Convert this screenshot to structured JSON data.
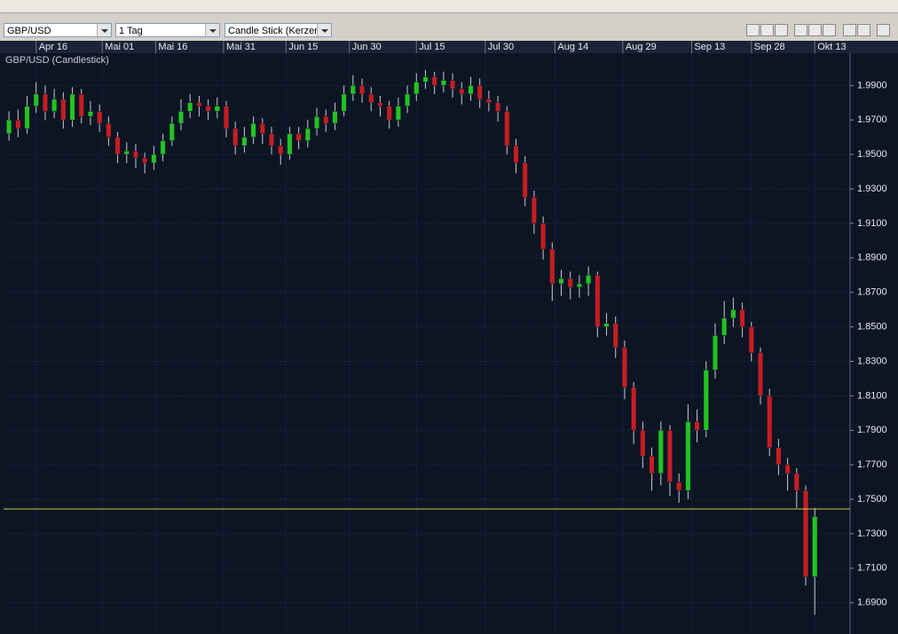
{
  "ui": {
    "symbol": "GBP/USD",
    "period": "1 Tag",
    "chart_style": "Candle Stick (Kerzen"
  },
  "chart_data": {
    "type": "candlestick",
    "title": "GBP/USD (Candlestick)",
    "xlim": [
      -0.6,
      92.9
    ],
    "xticks": [
      {
        "value": 3,
        "label": "Apr 16"
      },
      {
        "value": 10.3,
        "label": "Mai 01"
      },
      {
        "value": 16.2,
        "label": "Mai 16"
      },
      {
        "value": 23.7,
        "label": "Mai 31"
      },
      {
        "value": 30.6,
        "label": "Jun 15"
      },
      {
        "value": 37.6,
        "label": "Jun 30"
      },
      {
        "value": 45,
        "label": "Jul 15"
      },
      {
        "value": 52.6,
        "label": "Jul 30"
      },
      {
        "value": 60.3,
        "label": "Aug 14"
      },
      {
        "value": 67.8,
        "label": "Aug 29"
      },
      {
        "value": 75.4,
        "label": "Sep 13"
      },
      {
        "value": 82,
        "label": "Sep 28"
      },
      {
        "value": 89,
        "label": "Okt 13"
      }
    ],
    "ylim": [
      1.6734,
      2.0087
    ],
    "yticks": [
      {
        "value": 1.69,
        "label": "1.6900"
      },
      {
        "value": 1.71,
        "label": "1.7100"
      },
      {
        "value": 1.73,
        "label": "1.7300"
      },
      {
        "value": 1.75,
        "label": "1.7500"
      },
      {
        "value": 1.77,
        "label": "1.7700"
      },
      {
        "value": 1.79,
        "label": "1.7900"
      },
      {
        "value": 1.81,
        "label": "1.8100"
      },
      {
        "value": 1.83,
        "label": "1.8300"
      },
      {
        "value": 1.85,
        "label": "1.8500"
      },
      {
        "value": 1.87,
        "label": "1.8700"
      },
      {
        "value": 1.89,
        "label": "1.8900"
      },
      {
        "value": 1.91,
        "label": "1.9100"
      },
      {
        "value": 1.93,
        "label": "1.9300"
      },
      {
        "value": 1.95,
        "label": "1.9500"
      },
      {
        "value": 1.97,
        "label": "1.9700"
      },
      {
        "value": 1.99,
        "label": "1.9900"
      }
    ],
    "grid": true,
    "up_color": "#22c322",
    "down_color": "#c41e24",
    "wick_color": "#c8ccd4",
    "price_line": 1.7444,
    "price_line_color": "#d9c84a",
    "open": [
      1.962,
      1.97,
      1.965,
      1.978,
      1.985,
      1.975,
      1.982,
      1.97,
      1.985,
      1.972,
      1.975,
      1.968,
      1.96,
      1.95,
      1.952,
      1.948,
      1.945,
      1.95,
      1.958,
      1.968,
      1.975,
      1.98,
      1.978,
      1.975,
      1.978,
      1.965,
      1.955,
      1.96,
      1.968,
      1.962,
      1.955,
      1.95,
      1.962,
      1.958,
      1.965,
      1.972,
      1.968,
      1.975,
      1.985,
      1.99,
      1.985,
      1.98,
      1.978,
      1.97,
      1.978,
      1.985,
      1.992,
      1.995,
      1.99,
      1.993,
      1.988,
      1.985,
      1.99,
      1.982,
      1.98,
      1.975,
      1.955,
      1.945,
      1.925,
      1.91,
      1.895,
      1.875,
      1.878,
      1.873,
      1.875,
      1.88,
      1.85,
      1.852,
      1.838,
      1.815,
      1.79,
      1.775,
      1.765,
      1.79,
      1.76,
      1.755,
      1.795,
      1.79,
      1.825,
      1.845,
      1.855,
      1.86,
      1.85,
      1.835,
      1.81,
      1.78,
      1.77,
      1.765,
      1.755,
      1.705
    ],
    "close": [
      1.97,
      1.965,
      1.978,
      1.985,
      1.975,
      1.982,
      1.97,
      1.985,
      1.972,
      1.975,
      1.968,
      1.96,
      1.95,
      1.952,
      1.948,
      1.945,
      1.95,
      1.958,
      1.968,
      1.975,
      1.98,
      1.978,
      1.975,
      1.978,
      1.965,
      1.955,
      1.96,
      1.968,
      1.962,
      1.955,
      1.95,
      1.962,
      1.958,
      1.965,
      1.972,
      1.968,
      1.975,
      1.985,
      1.99,
      1.985,
      1.98,
      1.978,
      1.97,
      1.978,
      1.985,
      1.992,
      1.995,
      1.99,
      1.993,
      1.988,
      1.985,
      1.99,
      1.982,
      1.98,
      1.975,
      1.955,
      1.945,
      1.925,
      1.91,
      1.895,
      1.875,
      1.878,
      1.873,
      1.875,
      1.88,
      1.85,
      1.852,
      1.838,
      1.815,
      1.79,
      1.775,
      1.765,
      1.79,
      1.76,
      1.755,
      1.795,
      1.79,
      1.825,
      1.845,
      1.855,
      1.86,
      1.85,
      1.835,
      1.81,
      1.78,
      1.77,
      1.765,
      1.755,
      1.705,
      1.74
    ],
    "high": [
      1.975,
      1.976,
      1.984,
      1.992,
      1.99,
      1.988,
      1.986,
      1.989,
      1.988,
      1.981,
      1.979,
      1.972,
      1.963,
      1.957,
      1.956,
      1.951,
      1.955,
      1.962,
      1.972,
      1.982,
      1.985,
      1.984,
      1.982,
      1.983,
      1.981,
      1.969,
      1.966,
      1.972,
      1.971,
      1.966,
      1.959,
      1.966,
      1.966,
      1.97,
      1.977,
      1.976,
      1.98,
      1.99,
      1.996,
      1.994,
      1.989,
      1.984,
      1.981,
      1.983,
      1.99,
      1.997,
      1.999,
      1.998,
      1.998,
      1.997,
      1.992,
      1.995,
      1.994,
      1.987,
      1.984,
      1.978,
      1.959,
      1.949,
      1.929,
      1.914,
      1.899,
      1.883,
      1.882,
      1.88,
      1.885,
      1.882,
      1.858,
      1.856,
      1.842,
      1.818,
      1.795,
      1.78,
      1.795,
      1.793,
      1.765,
      1.805,
      1.802,
      1.83,
      1.852,
      1.865,
      1.867,
      1.864,
      1.853,
      1.838,
      1.814,
      1.785,
      1.774,
      1.768,
      1.758,
      1.745
    ],
    "low": [
      1.958,
      1.96,
      1.962,
      1.974,
      1.97,
      1.971,
      1.965,
      1.966,
      1.968,
      1.967,
      1.963,
      1.955,
      1.945,
      1.945,
      1.942,
      1.939,
      1.941,
      1.946,
      1.955,
      1.964,
      1.971,
      1.972,
      1.97,
      1.971,
      1.96,
      1.95,
      1.951,
      1.956,
      1.956,
      1.95,
      1.944,
      1.947,
      1.953,
      1.954,
      1.961,
      1.963,
      1.964,
      1.972,
      1.981,
      1.98,
      1.975,
      1.972,
      1.965,
      1.966,
      1.974,
      1.981,
      1.988,
      1.985,
      1.986,
      1.983,
      1.979,
      1.981,
      1.977,
      1.975,
      1.969,
      1.95,
      1.939,
      1.92,
      1.904,
      1.889,
      1.865,
      1.868,
      1.866,
      1.867,
      1.868,
      1.844,
      1.845,
      1.832,
      1.808,
      1.782,
      1.768,
      1.755,
      1.758,
      1.752,
      1.748,
      1.75,
      1.783,
      1.786,
      1.82,
      1.84,
      1.85,
      1.844,
      1.83,
      1.805,
      1.775,
      1.764,
      1.755,
      1.745,
      1.7,
      1.683
    ]
  }
}
